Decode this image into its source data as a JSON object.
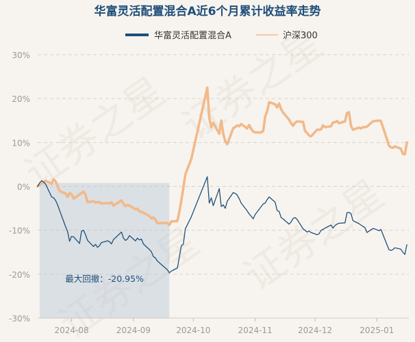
{
  "chart_data": {
    "type": "line",
    "title": "华富灵活配置混合A近6个月累计收益率走势",
    "legend_position": "top-center",
    "grid": true,
    "ylim": [
      -30,
      30
    ],
    "y_ticks": [
      30,
      20,
      10,
      0,
      -10,
      -20,
      -30
    ],
    "y_tick_labels": [
      "30%",
      "20%",
      "10%",
      "0%",
      "-10%",
      "-20%",
      "-30%"
    ],
    "xlim": [
      "2024-07-15",
      "2025-01-17"
    ],
    "x_ticks": [
      "2024-08-01",
      "2024-09-01",
      "2024-10-01",
      "2024-11-01",
      "2024-12-01",
      "2025-01-01"
    ],
    "x_tick_labels": [
      "2024-08",
      "2024-09",
      "2024-10",
      "2024-11",
      "2024-12",
      "2025-01"
    ],
    "watermark": "证券之星",
    "annotation": {
      "label": "最大回撤：-20.95%",
      "start": "2024-07-16",
      "end": "2024-09-19"
    },
    "series": [
      {
        "name": "华富灵活配置混合A",
        "color": "#1f4e79",
        "points": [
          [
            "2024-07-15",
            0.0
          ],
          [
            "2024-07-16",
            0.8
          ],
          [
            "2024-07-17",
            1.3
          ],
          [
            "2024-07-18",
            1.0
          ],
          [
            "2024-07-19",
            0.5
          ],
          [
            "2024-07-22",
            -2.4
          ],
          [
            "2024-07-23",
            -2.6
          ],
          [
            "2024-07-24",
            -3.2
          ],
          [
            "2024-07-25",
            -4.2
          ],
          [
            "2024-07-26",
            -5.5
          ],
          [
            "2024-07-29",
            -9.2
          ],
          [
            "2024-07-30",
            -10.3
          ],
          [
            "2024-07-31",
            -12.5
          ],
          [
            "2024-08-01",
            -11.4
          ],
          [
            "2024-08-02",
            -11.5
          ],
          [
            "2024-08-05",
            -13.0
          ],
          [
            "2024-08-06",
            -10.2
          ],
          [
            "2024-08-07",
            -10.0
          ],
          [
            "2024-08-08",
            -11.0
          ],
          [
            "2024-08-09",
            -12.3
          ],
          [
            "2024-08-12",
            -13.7
          ],
          [
            "2024-08-13",
            -13.2
          ],
          [
            "2024-08-14",
            -13.9
          ],
          [
            "2024-08-15",
            -13.5
          ],
          [
            "2024-08-16",
            -12.8
          ],
          [
            "2024-08-19",
            -12.4
          ],
          [
            "2024-08-20",
            -12.6
          ],
          [
            "2024-08-21",
            -13.1
          ],
          [
            "2024-08-22",
            -12.1
          ],
          [
            "2024-08-23",
            -11.7
          ],
          [
            "2024-08-26",
            -10.4
          ],
          [
            "2024-08-27",
            -11.8
          ],
          [
            "2024-08-28",
            -12.3
          ],
          [
            "2024-08-29",
            -12.0
          ],
          [
            "2024-08-30",
            -11.2
          ],
          [
            "2024-09-02",
            -12.4
          ],
          [
            "2024-09-03",
            -11.8
          ],
          [
            "2024-09-04",
            -12.2
          ],
          [
            "2024-09-05",
            -12.0
          ],
          [
            "2024-09-06",
            -13.1
          ],
          [
            "2024-09-09",
            -14.4
          ],
          [
            "2024-09-10",
            -14.9
          ],
          [
            "2024-09-11",
            -16.0
          ],
          [
            "2024-09-12",
            -16.3
          ],
          [
            "2024-09-13",
            -17.0
          ],
          [
            "2024-09-18",
            -19.0
          ],
          [
            "2024-09-19",
            -19.7
          ],
          [
            "2024-09-20",
            -19.3
          ],
          [
            "2024-09-23",
            -18.6
          ],
          [
            "2024-09-24",
            -16.1
          ],
          [
            "2024-09-25",
            -13.5
          ],
          [
            "2024-09-26",
            -13.2
          ],
          [
            "2024-09-27",
            -9.7
          ],
          [
            "2024-09-30",
            -6.9
          ],
          [
            "2024-10-08",
            2.2
          ],
          [
            "2024-10-09",
            -3.8
          ],
          [
            "2024-10-10",
            -2.6
          ],
          [
            "2024-10-11",
            -4.4
          ],
          [
            "2024-10-14",
            -0.5
          ],
          [
            "2024-10-15",
            -4.6
          ],
          [
            "2024-10-16",
            -4.2
          ],
          [
            "2024-10-17",
            -5.0
          ],
          [
            "2024-10-18",
            -3.4
          ],
          [
            "2024-10-21",
            -1.4
          ],
          [
            "2024-10-22",
            -1.6
          ],
          [
            "2024-10-23",
            -2.0
          ],
          [
            "2024-10-24",
            -2.8
          ],
          [
            "2024-10-25",
            -3.8
          ],
          [
            "2024-10-28",
            -5.6
          ],
          [
            "2024-10-29",
            -6.3
          ],
          [
            "2024-10-30",
            -6.8
          ],
          [
            "2024-10-31",
            -7.4
          ],
          [
            "2024-11-01",
            -6.4
          ],
          [
            "2024-11-04",
            -4.6
          ],
          [
            "2024-11-05",
            -4.0
          ],
          [
            "2024-11-06",
            -3.8
          ],
          [
            "2024-11-07",
            -3.0
          ],
          [
            "2024-11-08",
            -2.4
          ],
          [
            "2024-11-11",
            -3.6
          ],
          [
            "2024-11-12",
            -5.5
          ],
          [
            "2024-11-13",
            -5.7
          ],
          [
            "2024-11-14",
            -7.1
          ],
          [
            "2024-11-15",
            -7.4
          ],
          [
            "2024-11-18",
            -8.6
          ],
          [
            "2024-11-19",
            -8.1
          ],
          [
            "2024-11-20",
            -7.3
          ],
          [
            "2024-11-21",
            -7.1
          ],
          [
            "2024-11-22",
            -7.5
          ],
          [
            "2024-11-25",
            -9.7
          ],
          [
            "2024-11-26",
            -10.0
          ],
          [
            "2024-11-27",
            -10.4
          ],
          [
            "2024-11-28",
            -10.2
          ],
          [
            "2024-11-29",
            -10.5
          ],
          [
            "2024-12-02",
            -11.0
          ],
          [
            "2024-12-03",
            -10.8
          ],
          [
            "2024-12-04",
            -10.0
          ],
          [
            "2024-12-05",
            -9.8
          ],
          [
            "2024-12-06",
            -9.5
          ],
          [
            "2024-12-09",
            -8.8
          ],
          [
            "2024-12-10",
            -9.5
          ],
          [
            "2024-12-11",
            -8.9
          ],
          [
            "2024-12-12",
            -8.6
          ],
          [
            "2024-12-13",
            -8.4
          ],
          [
            "2024-12-16",
            -8.3
          ],
          [
            "2024-12-17",
            -6.0
          ],
          [
            "2024-12-18",
            -5.9
          ],
          [
            "2024-12-19",
            -6.2
          ],
          [
            "2024-12-20",
            -7.8
          ],
          [
            "2024-12-23",
            -8.5
          ],
          [
            "2024-12-24",
            -8.8
          ],
          [
            "2024-12-25",
            -9.1
          ],
          [
            "2024-12-26",
            -9.4
          ],
          [
            "2024-12-27",
            -10.5
          ],
          [
            "2024-12-30",
            -9.6
          ],
          [
            "2024-12-31",
            -9.7
          ],
          [
            "2025-01-02",
            -10.1
          ],
          [
            "2025-01-03",
            -9.8
          ],
          [
            "2025-01-06",
            -13.2
          ],
          [
            "2025-01-07",
            -14.4
          ],
          [
            "2025-01-08",
            -14.6
          ],
          [
            "2025-01-09",
            -14.4
          ],
          [
            "2025-01-10",
            -14.0
          ],
          [
            "2025-01-13",
            -14.3
          ],
          [
            "2025-01-14",
            -15.0
          ],
          [
            "2025-01-15",
            -15.5
          ],
          [
            "2025-01-16",
            -13.3
          ]
        ]
      },
      {
        "name": "沪深300",
        "color": "#f2b98a",
        "points": [
          [
            "2024-07-15",
            0.0
          ],
          [
            "2024-07-16",
            0.5
          ],
          [
            "2024-07-17",
            0.6
          ],
          [
            "2024-07-18",
            0.9
          ],
          [
            "2024-07-19",
            1.3
          ],
          [
            "2024-07-22",
            0.6
          ],
          [
            "2024-07-23",
            1.6
          ],
          [
            "2024-07-24",
            1.1
          ],
          [
            "2024-07-25",
            0.1
          ],
          [
            "2024-07-26",
            -1.1
          ],
          [
            "2024-07-29",
            -1.6
          ],
          [
            "2024-07-30",
            -2.4
          ],
          [
            "2024-07-31",
            -1.5
          ],
          [
            "2024-08-01",
            -1.8
          ],
          [
            "2024-08-02",
            -2.8
          ],
          [
            "2024-08-05",
            -1.8
          ],
          [
            "2024-08-06",
            -1.5
          ],
          [
            "2024-08-07",
            -1.2
          ],
          [
            "2024-08-08",
            -1.9
          ],
          [
            "2024-08-09",
            -3.6
          ],
          [
            "2024-08-12",
            -3.4
          ],
          [
            "2024-08-13",
            -3.7
          ],
          [
            "2024-08-14",
            -3.6
          ],
          [
            "2024-08-15",
            -3.6
          ],
          [
            "2024-08-16",
            -3.9
          ],
          [
            "2024-08-19",
            -3.8
          ],
          [
            "2024-08-20",
            -3.9
          ],
          [
            "2024-08-21",
            -3.6
          ],
          [
            "2024-08-22",
            -4.4
          ],
          [
            "2024-08-23",
            -4.1
          ],
          [
            "2024-08-26",
            -3.2
          ],
          [
            "2024-08-27",
            -4.0
          ],
          [
            "2024-08-28",
            -4.5
          ],
          [
            "2024-08-29",
            -4.2
          ],
          [
            "2024-08-30",
            -4.4
          ],
          [
            "2024-09-02",
            -5.2
          ],
          [
            "2024-09-03",
            -5.1
          ],
          [
            "2024-09-04",
            -5.7
          ],
          [
            "2024-09-05",
            -5.8
          ],
          [
            "2024-09-06",
            -6.0
          ],
          [
            "2024-09-09",
            -6.8
          ],
          [
            "2024-09-10",
            -7.3
          ],
          [
            "2024-09-11",
            -7.1
          ],
          [
            "2024-09-12",
            -7.6
          ],
          [
            "2024-09-13",
            -8.4
          ],
          [
            "2024-09-18",
            -8.3
          ],
          [
            "2024-09-19",
            -8.8
          ],
          [
            "2024-09-20",
            -8.0
          ],
          [
            "2024-09-23",
            -7.9
          ],
          [
            "2024-09-24",
            -5.8
          ],
          [
            "2024-09-25",
            -3.2
          ],
          [
            "2024-09-26",
            -0.4
          ],
          [
            "2024-09-27",
            2.7
          ],
          [
            "2024-09-30",
            6.3
          ],
          [
            "2024-10-08",
            22.5
          ],
          [
            "2024-10-09",
            15.6
          ],
          [
            "2024-10-10",
            13.5
          ],
          [
            "2024-10-11",
            14.5
          ],
          [
            "2024-10-14",
            12.0
          ],
          [
            "2024-10-15",
            15.0
          ],
          [
            "2024-10-16",
            12.0
          ],
          [
            "2024-10-17",
            10.3
          ],
          [
            "2024-10-18",
            9.6
          ],
          [
            "2024-10-21",
            13.3
          ],
          [
            "2024-10-22",
            13.5
          ],
          [
            "2024-10-23",
            13.9
          ],
          [
            "2024-10-24",
            13.7
          ],
          [
            "2024-10-25",
            14.2
          ],
          [
            "2024-10-28",
            13.2
          ],
          [
            "2024-10-29",
            14.0
          ],
          [
            "2024-10-30",
            13.1
          ],
          [
            "2024-10-31",
            12.5
          ],
          [
            "2024-11-01",
            12.3
          ],
          [
            "2024-11-04",
            12.3
          ],
          [
            "2024-11-05",
            12.6
          ],
          [
            "2024-11-06",
            15.9
          ],
          [
            "2024-11-07",
            17.1
          ],
          [
            "2024-11-08",
            19.2
          ],
          [
            "2024-11-11",
            18.7
          ],
          [
            "2024-11-12",
            18.0
          ],
          [
            "2024-11-13",
            18.9
          ],
          [
            "2024-11-14",
            17.6
          ],
          [
            "2024-11-15",
            16.8
          ],
          [
            "2024-11-18",
            15.2
          ],
          [
            "2024-11-19",
            14.4
          ],
          [
            "2024-11-20",
            13.8
          ],
          [
            "2024-11-21",
            14.5
          ],
          [
            "2024-11-22",
            14.8
          ],
          [
            "2024-11-25",
            14.7
          ],
          [
            "2024-11-26",
            12.6
          ],
          [
            "2024-11-27",
            12.2
          ],
          [
            "2024-11-28",
            11.6
          ],
          [
            "2024-11-29",
            11.4
          ],
          [
            "2024-12-02",
            12.9
          ],
          [
            "2024-12-03",
            12.9
          ],
          [
            "2024-12-04",
            13.0
          ],
          [
            "2024-12-05",
            13.9
          ],
          [
            "2024-12-06",
            13.5
          ],
          [
            "2024-12-09",
            13.7
          ],
          [
            "2024-12-10",
            14.6
          ],
          [
            "2024-12-11",
            14.6
          ],
          [
            "2024-12-12",
            14.9
          ],
          [
            "2024-12-13",
            14.4
          ],
          [
            "2024-12-16",
            14.8
          ],
          [
            "2024-12-17",
            16.7
          ],
          [
            "2024-12-18",
            16.9
          ],
          [
            "2024-12-19",
            13.8
          ],
          [
            "2024-12-20",
            12.9
          ],
          [
            "2024-12-23",
            13.4
          ],
          [
            "2024-12-24",
            13.2
          ],
          [
            "2024-12-25",
            13.5
          ],
          [
            "2024-12-26",
            13.5
          ],
          [
            "2024-12-27",
            13.6
          ],
          [
            "2024-12-30",
            14.8
          ],
          [
            "2024-12-31",
            14.9
          ],
          [
            "2025-01-02",
            15.0
          ],
          [
            "2025-01-03",
            14.9
          ],
          [
            "2025-01-06",
            10.8
          ],
          [
            "2025-01-07",
            9.3
          ],
          [
            "2025-01-08",
            8.9
          ],
          [
            "2025-01-09",
            8.8
          ],
          [
            "2025-01-10",
            9.1
          ],
          [
            "2025-01-13",
            8.6
          ],
          [
            "2025-01-14",
            7.4
          ],
          [
            "2025-01-15",
            7.3
          ],
          [
            "2025-01-16",
            10.0
          ]
        ]
      }
    ]
  }
}
